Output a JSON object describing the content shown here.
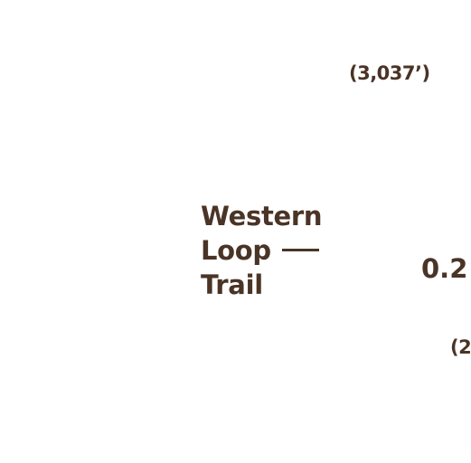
{
  "map": {
    "labels": {
      "elevation_top": "(3,037’)",
      "elevation_bottom": "(2",
      "distance": "0.2"
    },
    "trail": {
      "name_lines": [
        "Western",
        "Loop",
        "Trail"
      ]
    },
    "colors": {
      "text": "#4a3426",
      "trail_line": "#4a3426",
      "background": "#ffffff"
    }
  }
}
